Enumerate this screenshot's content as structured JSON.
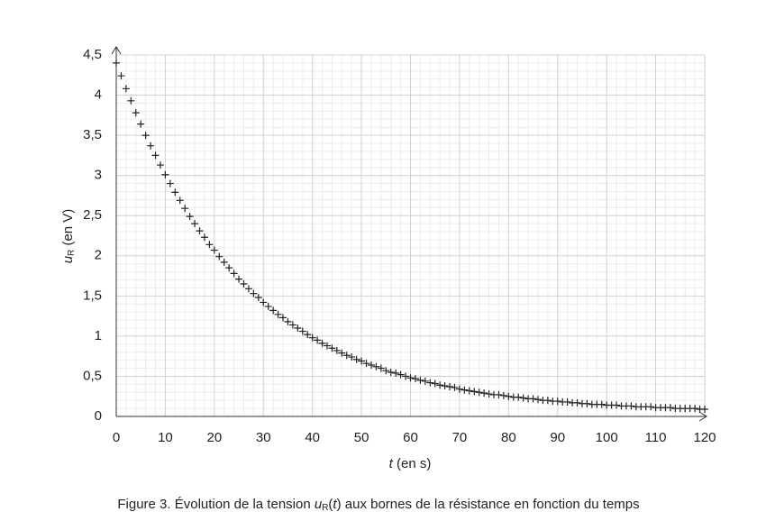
{
  "chart_data": {
    "type": "scatter",
    "x_label": [
      {
        "text": "t",
        "style": "italic"
      },
      {
        "text": " (en s)"
      }
    ],
    "y_label": [
      {
        "text": "u",
        "style": "italic"
      },
      {
        "text": "R",
        "style": "sub"
      },
      {
        "text": " (en V)"
      }
    ],
    "caption": [
      {
        "text": "Figure 3. Évolution de la tension "
      },
      {
        "text": "u",
        "style": "italic"
      },
      {
        "text": "R",
        "style": "sub"
      },
      {
        "text": "("
      },
      {
        "text": "t",
        "style": "italic"
      },
      {
        "text": ") aux bornes de la résistance en fonction du temps"
      }
    ],
    "xlim": [
      0,
      120
    ],
    "ylim": [
      0,
      4.5
    ],
    "xticks": [
      0,
      10,
      20,
      30,
      40,
      50,
      60,
      70,
      80,
      90,
      100,
      110,
      120
    ],
    "yticks": [
      0,
      {
        "value": 0.5,
        "label": "0,5"
      },
      1,
      {
        "value": 1.5,
        "label": "1,5"
      },
      2,
      {
        "value": 2.5,
        "label": "2,5"
      },
      3,
      {
        "value": 3.5,
        "label": "3,5"
      },
      4,
      {
        "value": 4.5,
        "label": "4,5"
      }
    ],
    "grid": true,
    "minor_grid_divisions": 5,
    "marker": "plus",
    "color": "#222222",
    "x": [
      0,
      1,
      2,
      3,
      4,
      5,
      6,
      7,
      8,
      9,
      10,
      11,
      12,
      13,
      14,
      15,
      16,
      17,
      18,
      19,
      20,
      21,
      22,
      23,
      24,
      25,
      26,
      27,
      28,
      29,
      30,
      31,
      32,
      33,
      34,
      35,
      36,
      37,
      38,
      39,
      40,
      41,
      42,
      43,
      44,
      45,
      46,
      47,
      48,
      49,
      50,
      51,
      52,
      53,
      54,
      55,
      56,
      57,
      58,
      59,
      60,
      61,
      62,
      63,
      64,
      65,
      66,
      67,
      68,
      69,
      70,
      71,
      72,
      73,
      74,
      75,
      76,
      77,
      78,
      79,
      80,
      81,
      82,
      83,
      84,
      85,
      86,
      87,
      88,
      89,
      90,
      91,
      92,
      93,
      94,
      95,
      96,
      97,
      98,
      99,
      100,
      101,
      102,
      103,
      104,
      105,
      106,
      107,
      108,
      109,
      110,
      111,
      112,
      113,
      114,
      115,
      116,
      117,
      118,
      119,
      120
    ],
    "values": [
      4.4,
      4.24,
      4.08,
      3.93,
      3.78,
      3.64,
      3.5,
      3.37,
      3.25,
      3.13,
      3.01,
      2.9,
      2.79,
      2.69,
      2.59,
      2.49,
      2.4,
      2.31,
      2.23,
      2.14,
      2.07,
      1.99,
      1.92,
      1.85,
      1.78,
      1.71,
      1.65,
      1.59,
      1.53,
      1.48,
      1.42,
      1.37,
      1.32,
      1.27,
      1.23,
      1.18,
      1.14,
      1.1,
      1.06,
      1.02,
      0.98,
      0.95,
      0.91,
      0.88,
      0.85,
      0.82,
      0.79,
      0.76,
      0.74,
      0.71,
      0.69,
      0.66,
      0.64,
      0.62,
      0.6,
      0.57,
      0.55,
      0.54,
      0.52,
      0.5,
      0.48,
      0.47,
      0.45,
      0.44,
      0.42,
      0.41,
      0.39,
      0.38,
      0.37,
      0.36,
      0.34,
      0.33,
      0.32,
      0.31,
      0.3,
      0.29,
      0.28,
      0.27,
      0.27,
      0.26,
      0.25,
      0.24,
      0.24,
      0.23,
      0.22,
      0.22,
      0.21,
      0.2,
      0.2,
      0.19,
      0.19,
      0.18,
      0.18,
      0.17,
      0.17,
      0.16,
      0.16,
      0.15,
      0.15,
      0.15,
      0.14,
      0.14,
      0.14,
      0.13,
      0.13,
      0.13,
      0.12,
      0.12,
      0.12,
      0.12,
      0.11,
      0.11,
      0.11,
      0.11,
      0.1,
      0.1,
      0.1,
      0.1,
      0.1,
      0.09,
      0.09
    ]
  }
}
